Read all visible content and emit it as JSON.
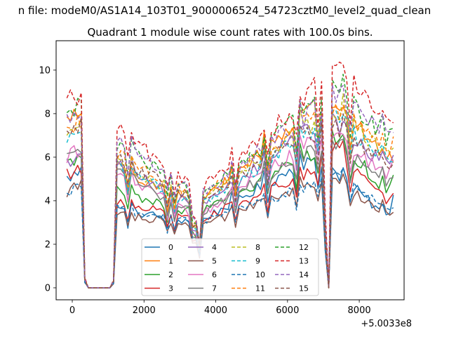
{
  "chart_data": {
    "type": "line",
    "suptitle": "n file: modeM0/AS1A14_103T01_9000006524_54723cztM0_level2_quad_clean",
    "title": "Quadrant 1 module wise count rates with 100.0s bins.",
    "xlabel": "",
    "ylabel": "",
    "x_offset_label": "+5.0033e8",
    "xlim": [
      -450,
      9250
    ],
    "ylim": [
      -0.55,
      11.35
    ],
    "xticks": [
      0,
      2000,
      4000,
      6000,
      8000
    ],
    "xtick_labels": [
      "0",
      "2000",
      "4000",
      "6000",
      "8000"
    ],
    "yticks": [
      0,
      2,
      4,
      6,
      8,
      10
    ],
    "ytick_labels": [
      "0",
      "2",
      "4",
      "6",
      "8",
      "10"
    ],
    "x_start": -150,
    "x_step": 100,
    "legend": {
      "position": "lower-center",
      "ncol": 4
    },
    "series": [
      {
        "name": "0",
        "color": "#1f77b4",
        "style": "solid",
        "levels": [
          [
            0,
            -150,
            5.0
          ],
          [
            1,
            300,
            5.4
          ],
          [
            2,
            1250,
            3.6
          ],
          [
            3,
            3500,
            3.0
          ],
          [
            4,
            6500,
            5.8
          ],
          [
            5,
            7300,
            5.4
          ],
          [
            6,
            8800,
            3.2
          ],
          [
            7,
            9000,
            4.8
          ]
        ]
      },
      {
        "name": "1",
        "color": "#ff7f0e",
        "style": "solid",
        "levels": [
          [
            0,
            -150,
            7.6
          ],
          [
            1,
            300,
            8.0
          ],
          [
            2,
            1250,
            5.6
          ],
          [
            3,
            3500,
            3.8
          ],
          [
            4,
            6500,
            8.0
          ],
          [
            5,
            7300,
            8.6
          ],
          [
            6,
            8800,
            5.8
          ],
          [
            7,
            9000,
            6.2
          ]
        ]
      },
      {
        "name": "2",
        "color": "#2ca02c",
        "style": "solid",
        "levels": [
          [
            0,
            -150,
            5.6
          ],
          [
            1,
            300,
            6.2
          ],
          [
            2,
            1250,
            4.4
          ],
          [
            3,
            3500,
            3.4
          ],
          [
            4,
            6500,
            6.0
          ],
          [
            5,
            7300,
            7.0
          ],
          [
            6,
            8800,
            4.4
          ],
          [
            7,
            9000,
            5.2
          ]
        ]
      },
      {
        "name": "3",
        "color": "#d62728",
        "style": "solid",
        "levels": [
          [
            0,
            -150,
            5.2
          ],
          [
            1,
            300,
            5.6
          ],
          [
            2,
            1250,
            4.0
          ],
          [
            3,
            3500,
            3.1
          ],
          [
            4,
            6500,
            5.2
          ],
          [
            5,
            7300,
            6.4
          ],
          [
            6,
            8800,
            4.0
          ],
          [
            7,
            9000,
            4.4
          ]
        ]
      },
      {
        "name": "4",
        "color": "#9467bd",
        "style": "solid",
        "levels": [
          [
            0,
            -150,
            5.6
          ],
          [
            1,
            300,
            6.0
          ],
          [
            2,
            1250,
            5.8
          ],
          [
            3,
            3500,
            3.6
          ],
          [
            4,
            6500,
            7.2
          ],
          [
            5,
            7300,
            7.6
          ],
          [
            6,
            8800,
            5.6
          ],
          [
            7,
            9000,
            6.4
          ]
        ]
      },
      {
        "name": "5",
        "color": "#8c564b",
        "style": "solid",
        "levels": [
          [
            0,
            -150,
            4.4
          ],
          [
            1,
            300,
            5.0
          ],
          [
            2,
            1250,
            3.4
          ],
          [
            3,
            3500,
            2.8
          ],
          [
            4,
            6500,
            4.6
          ],
          [
            5,
            7300,
            5.0
          ],
          [
            6,
            8800,
            3.4
          ],
          [
            7,
            9000,
            3.7
          ]
        ]
      },
      {
        "name": "6",
        "color": "#e377c2",
        "style": "solid",
        "levels": [
          [
            0,
            -150,
            6.0
          ],
          [
            1,
            300,
            6.4
          ],
          [
            2,
            1250,
            5.2
          ],
          [
            3,
            3500,
            3.2
          ],
          [
            4,
            6500,
            6.6
          ],
          [
            5,
            7300,
            7.2
          ],
          [
            6,
            8800,
            5.0
          ],
          [
            7,
            9000,
            5.8
          ]
        ]
      },
      {
        "name": "7",
        "color": "#7f7f7f",
        "style": "solid",
        "levels": [
          [
            0,
            -150,
            6.4
          ],
          [
            1,
            300,
            6.6
          ],
          [
            2,
            1250,
            5.4
          ],
          [
            3,
            3500,
            3.3
          ],
          [
            4,
            6500,
            6.2
          ],
          [
            5,
            7300,
            6.6
          ],
          [
            6,
            8800,
            4.8
          ],
          [
            7,
            9000,
            5.0
          ]
        ]
      },
      {
        "name": "8",
        "color": "#bcbd22",
        "style": "dashed",
        "levels": [
          [
            0,
            -150,
            7.2
          ],
          [
            1,
            300,
            7.6
          ],
          [
            2,
            1250,
            5.8
          ],
          [
            3,
            3500,
            3.9
          ],
          [
            4,
            6500,
            7.4
          ],
          [
            5,
            7300,
            8.2
          ],
          [
            6,
            8800,
            6.0
          ],
          [
            7,
            9000,
            6.6
          ]
        ]
      },
      {
        "name": "9",
        "color": "#17becf",
        "style": "dashed",
        "levels": [
          [
            0,
            -150,
            6.8
          ],
          [
            1,
            300,
            7.2
          ],
          [
            2,
            1250,
            5.6
          ],
          [
            3,
            3500,
            3.7
          ],
          [
            4,
            6500,
            7.0
          ],
          [
            5,
            7300,
            7.8
          ],
          [
            6,
            8800,
            5.8
          ],
          [
            7,
            9000,
            6.0
          ]
        ]
      },
      {
        "name": "10",
        "color": "#1f77b4",
        "style": "dashed",
        "levels": [
          [
            0,
            -150,
            4.4
          ],
          [
            1,
            300,
            4.8
          ],
          [
            2,
            1250,
            3.6
          ],
          [
            3,
            3500,
            3.0
          ],
          [
            4,
            6500,
            4.6
          ],
          [
            5,
            7300,
            5.2
          ],
          [
            6,
            8800,
            3.6
          ],
          [
            7,
            9000,
            4.0
          ]
        ]
      },
      {
        "name": "11",
        "color": "#ff7f0e",
        "style": "dashed",
        "levels": [
          [
            0,
            -150,
            7.4
          ],
          [
            1,
            300,
            7.8
          ],
          [
            2,
            1250,
            6.2
          ],
          [
            3,
            3500,
            4.0
          ],
          [
            4,
            6500,
            7.6
          ],
          [
            5,
            7300,
            8.4
          ],
          [
            6,
            8800,
            6.4
          ],
          [
            7,
            9000,
            6.8
          ]
        ]
      },
      {
        "name": "12",
        "color": "#2ca02c",
        "style": "dashed",
        "levels": [
          [
            0,
            -150,
            8.0
          ],
          [
            1,
            300,
            8.4
          ],
          [
            2,
            1250,
            6.6
          ],
          [
            3,
            3500,
            4.2
          ],
          [
            4,
            6500,
            8.0
          ],
          [
            5,
            7300,
            9.4
          ],
          [
            6,
            8800,
            6.8
          ],
          [
            7,
            9000,
            7.4
          ]
        ]
      },
      {
        "name": "13",
        "color": "#d62728",
        "style": "dashed",
        "levels": [
          [
            0,
            -150,
            8.6
          ],
          [
            1,
            300,
            9.0
          ],
          [
            2,
            1250,
            7.4
          ],
          [
            3,
            3500,
            4.4
          ],
          [
            4,
            6500,
            8.6
          ],
          [
            5,
            7300,
            10.6
          ],
          [
            6,
            8800,
            7.4
          ],
          [
            7,
            9000,
            7.8
          ]
        ]
      },
      {
        "name": "14",
        "color": "#9467bd",
        "style": "dashed",
        "levels": [
          [
            0,
            -150,
            7.8
          ],
          [
            1,
            300,
            8.2
          ],
          [
            2,
            1250,
            6.8
          ],
          [
            3,
            3500,
            4.2
          ],
          [
            4,
            6500,
            7.8
          ],
          [
            5,
            7300,
            9.0
          ],
          [
            6,
            8800,
            7.0
          ],
          [
            7,
            9000,
            7.6
          ]
        ]
      },
      {
        "name": "15",
        "color": "#8c564b",
        "style": "dashed",
        "levels": [
          [
            0,
            -150,
            7.0
          ],
          [
            1,
            300,
            7.4
          ],
          [
            2,
            1250,
            6.0
          ],
          [
            3,
            3500,
            3.9
          ],
          [
            4,
            6500,
            7.0
          ],
          [
            5,
            7300,
            7.4
          ],
          [
            6,
            8800,
            5.6
          ],
          [
            7,
            9000,
            5.4
          ]
        ]
      }
    ]
  }
}
